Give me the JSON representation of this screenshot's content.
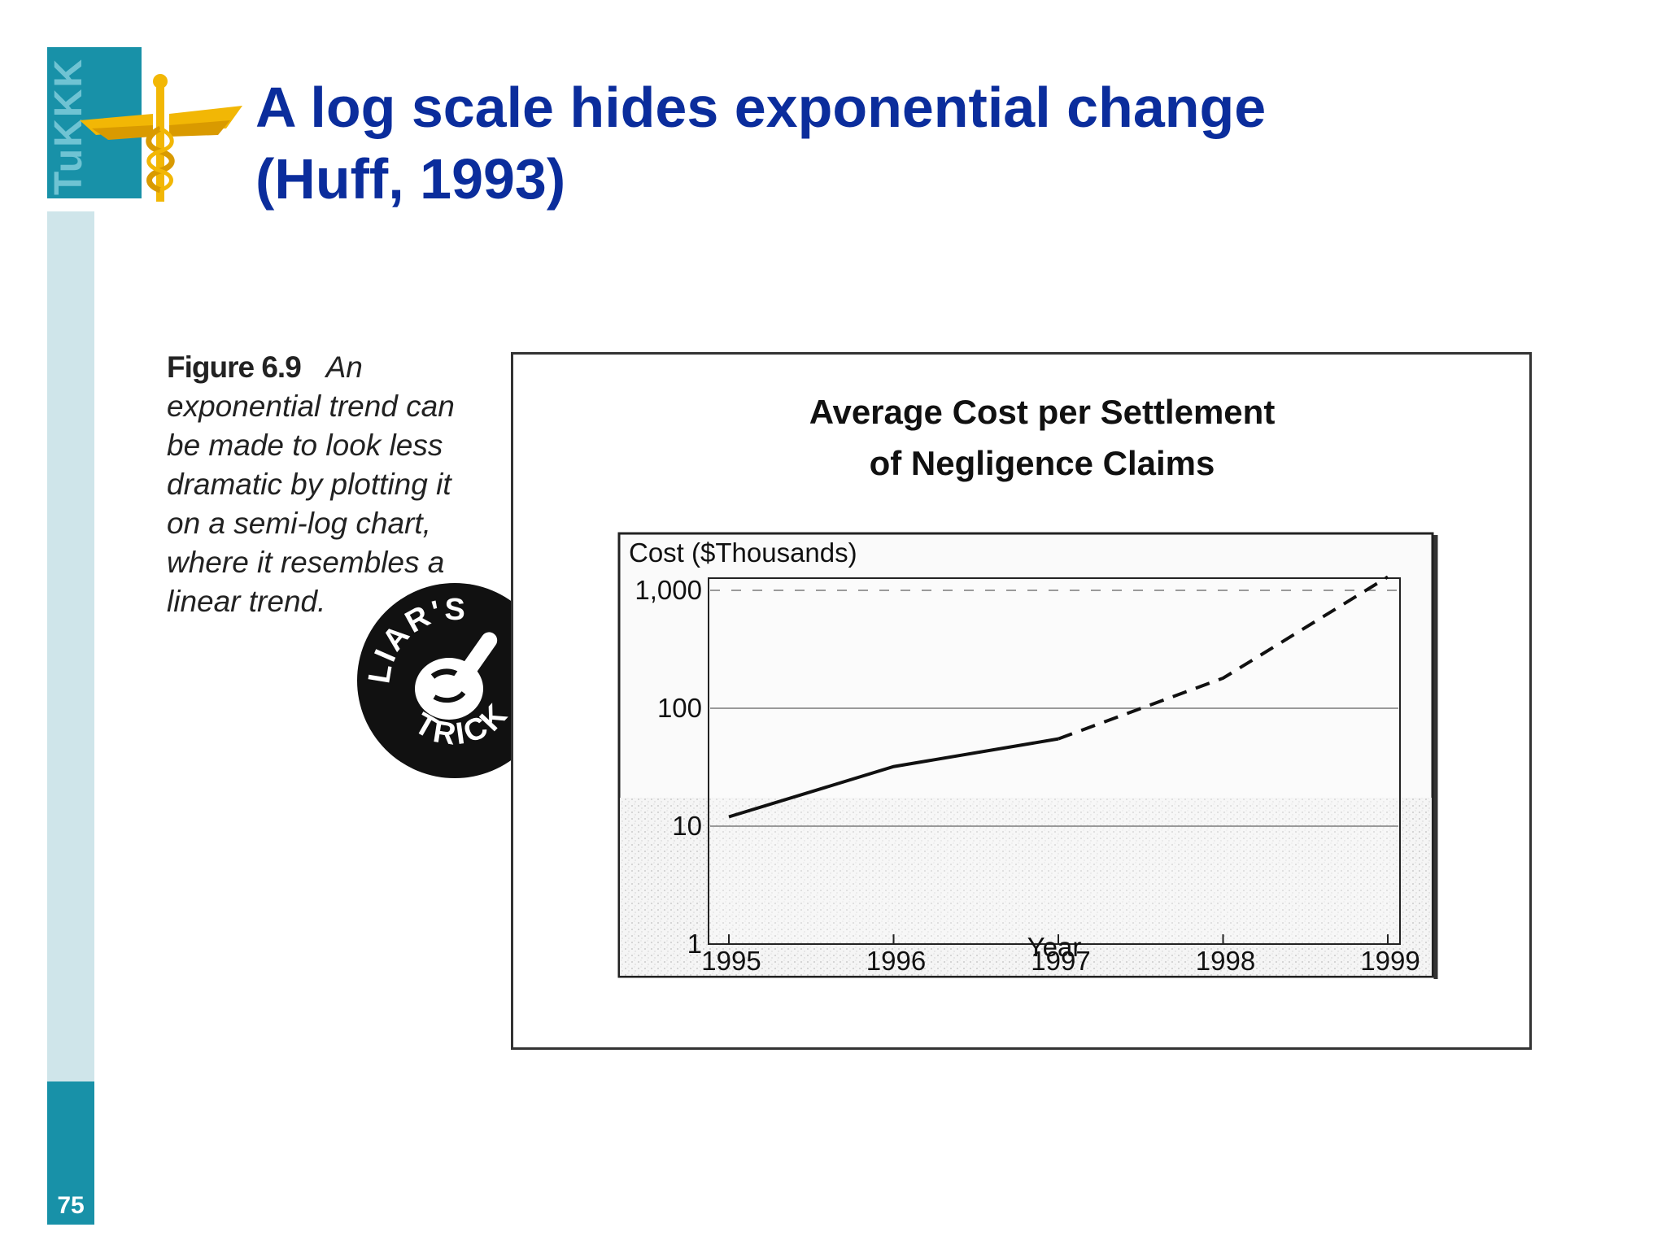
{
  "slide": {
    "title_line1": "A log scale hides exponential change",
    "title_line2": "(Huff, 1993)",
    "page_number": "75",
    "logo_text": "TuKKK",
    "accent_color": "#1891a8",
    "light_accent_color": "#cfe5ea",
    "title_color": "#0b2d9c"
  },
  "figure": {
    "caption_number": "Figure 6.9",
    "caption_text": "An exponential trend can be made to look less dramatic by plotting it on a semi-log chart, where it resembles a linear trend.",
    "badge_top": "LIAR'S",
    "badge_bottom": "TRICK"
  },
  "chart_data": {
    "type": "line",
    "title_line1": "Average Cost per Settlement",
    "title_line2": "of Negligence Claims",
    "ylabel": "Cost ($Thousands)",
    "xlabel": "Year",
    "yscale": "log",
    "ylim": [
      1,
      1000
    ],
    "yticks": [
      1,
      10,
      100,
      1000
    ],
    "ytick_labels": [
      "1",
      "10",
      "100",
      "1,000"
    ],
    "xlim": [
      1995,
      1999
    ],
    "xticks": [
      1995,
      1996,
      1997,
      1998,
      1999
    ],
    "xtick_labels": [
      "1995",
      "1996",
      "1997",
      "1998",
      "1999"
    ],
    "grid": true,
    "series": [
      {
        "style": "solid",
        "x": [
          1995,
          1996,
          1997
        ],
        "values": [
          12,
          32,
          55
        ]
      },
      {
        "style": "dashed",
        "x": [
          1997,
          1998,
          1999
        ],
        "values": [
          55,
          180,
          1500
        ]
      }
    ]
  }
}
